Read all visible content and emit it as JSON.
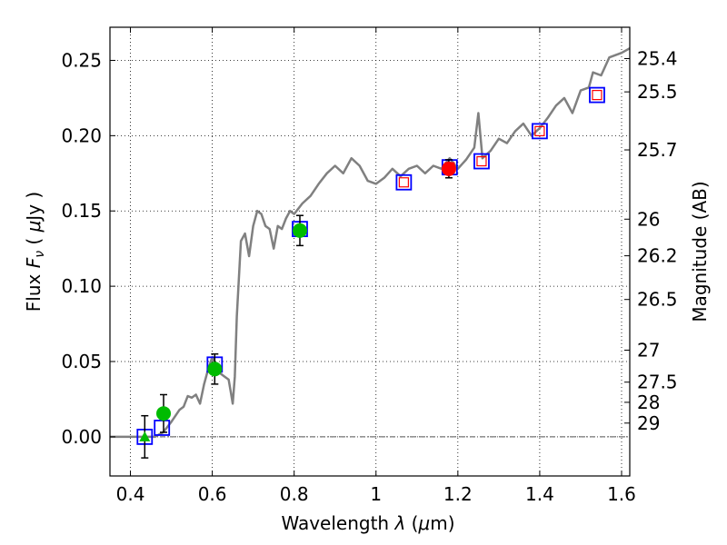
{
  "chart_data": {
    "type": "scatter",
    "xlabel": "Wavelength",
    "xlabel_symbol": "λ",
    "xlabel_unit_open": " (",
    "xlabel_unit_mu": "μ",
    "xlabel_unit_rest": "m)",
    "ylabel": "Flux",
    "ylabel_symbol": "F",
    "ylabel_subscript": "ν",
    "ylabel_unit_open": "( ",
    "ylabel_unit_mu": "μ",
    "ylabel_unit_rest": "Jy )",
    "y2label": "Magnitude (AB)",
    "xlim": [
      0.35,
      1.62
    ],
    "ylim": [
      -0.026,
      0.272
    ],
    "grid": true,
    "x_ticks": [
      0.4,
      0.6,
      0.8,
      1.0,
      1.2,
      1.4,
      1.6
    ],
    "x_tick_labels": [
      "0.4",
      "0.6",
      "0.8",
      "1",
      "1.2",
      "1.4",
      "1.6"
    ],
    "y_ticks": [
      0.0,
      0.05,
      0.1,
      0.15,
      0.2,
      0.25
    ],
    "y_tick_labels": [
      "0.00",
      "0.05",
      "0.10",
      "0.15",
      "0.20",
      "0.25"
    ],
    "mag_ticks": [
      {
        "mag": 25.4,
        "label": "25.4"
      },
      {
        "mag": 25.5,
        "label": "25.5"
      },
      {
        "mag": 25.7,
        "label": "25.7"
      },
      {
        "mag": 26,
        "label": "26"
      },
      {
        "mag": 26.2,
        "label": "26.2"
      },
      {
        "mag": 26.5,
        "label": "26.5"
      },
      {
        "mag": 27,
        "label": "27"
      },
      {
        "mag": 27.5,
        "label": "27.5"
      },
      {
        "mag": 28,
        "label": "28"
      },
      {
        "mag": 29,
        "label": "29"
      }
    ],
    "series": [
      {
        "name": "model spectrum",
        "kind": "line",
        "color": "#808080",
        "x": [
          0.35,
          0.4,
          0.43,
          0.46,
          0.48,
          0.5,
          0.52,
          0.53,
          0.54,
          0.55,
          0.56,
          0.57,
          0.58,
          0.59,
          0.6,
          0.61,
          0.62,
          0.63,
          0.64,
          0.645,
          0.65,
          0.655,
          0.66,
          0.67,
          0.68,
          0.69,
          0.7,
          0.71,
          0.72,
          0.73,
          0.74,
          0.75,
          0.76,
          0.77,
          0.78,
          0.79,
          0.8,
          0.82,
          0.84,
          0.86,
          0.88,
          0.9,
          0.92,
          0.94,
          0.96,
          0.98,
          1.0,
          1.02,
          1.04,
          1.06,
          1.08,
          1.1,
          1.12,
          1.14,
          1.16,
          1.18,
          1.2,
          1.22,
          1.24,
          1.25,
          1.26,
          1.28,
          1.3,
          1.32,
          1.34,
          1.36,
          1.38,
          1.4,
          1.42,
          1.44,
          1.46,
          1.48,
          1.5,
          1.52,
          1.53,
          1.55,
          1.57,
          1.6,
          1.62
        ],
        "y": [
          0.0,
          0.0,
          0.0,
          0.0,
          0.003,
          0.01,
          0.018,
          0.02,
          0.027,
          0.026,
          0.028,
          0.022,
          0.035,
          0.045,
          0.053,
          0.046,
          0.042,
          0.04,
          0.038,
          0.03,
          0.022,
          0.04,
          0.08,
          0.13,
          0.135,
          0.12,
          0.14,
          0.15,
          0.148,
          0.14,
          0.138,
          0.125,
          0.14,
          0.138,
          0.145,
          0.15,
          0.148,
          0.155,
          0.16,
          0.168,
          0.175,
          0.18,
          0.175,
          0.185,
          0.18,
          0.17,
          0.168,
          0.172,
          0.178,
          0.173,
          0.178,
          0.18,
          0.175,
          0.18,
          0.178,
          0.185,
          0.178,
          0.184,
          0.192,
          0.215,
          0.185,
          0.19,
          0.198,
          0.195,
          0.203,
          0.208,
          0.2,
          0.205,
          0.212,
          0.22,
          0.225,
          0.215,
          0.23,
          0.232,
          0.242,
          0.24,
          0.252,
          0.255,
          0.258
        ]
      },
      {
        "name": "model photometry",
        "kind": "open-square",
        "color": "#0000ff",
        "x": [
          0.435,
          0.477,
          0.606,
          0.814
        ],
        "y": [
          0.0,
          0.006,
          0.048,
          0.138
        ]
      },
      {
        "name": "model photometry (red-filled)",
        "kind": "open-square-red",
        "color": "#0000ff",
        "inner_color": "#ff0000",
        "x": [
          1.068,
          1.18,
          1.258,
          1.4,
          1.54
        ],
        "y": [
          0.169,
          0.179,
          0.183,
          0.203,
          0.227
        ]
      },
      {
        "name": "observed (green)",
        "kind": "circle",
        "color": "#00bb00",
        "x": [
          0.481,
          0.606,
          0.814
        ],
        "y": [
          0.0155,
          0.045,
          0.137
        ],
        "yerr": [
          0.0125,
          0.01,
          0.01
        ]
      },
      {
        "name": "upper limit (green)",
        "kind": "triangle",
        "color": "#00bb00",
        "x": [
          0.435
        ],
        "y": [
          0.0
        ],
        "yerr": [
          0.014
        ]
      },
      {
        "name": "observed (red)",
        "kind": "circle",
        "color": "#ff0000",
        "x": [
          1.178
        ],
        "y": [
          0.178
        ],
        "yerr": [
          0.006
        ]
      }
    ]
  }
}
